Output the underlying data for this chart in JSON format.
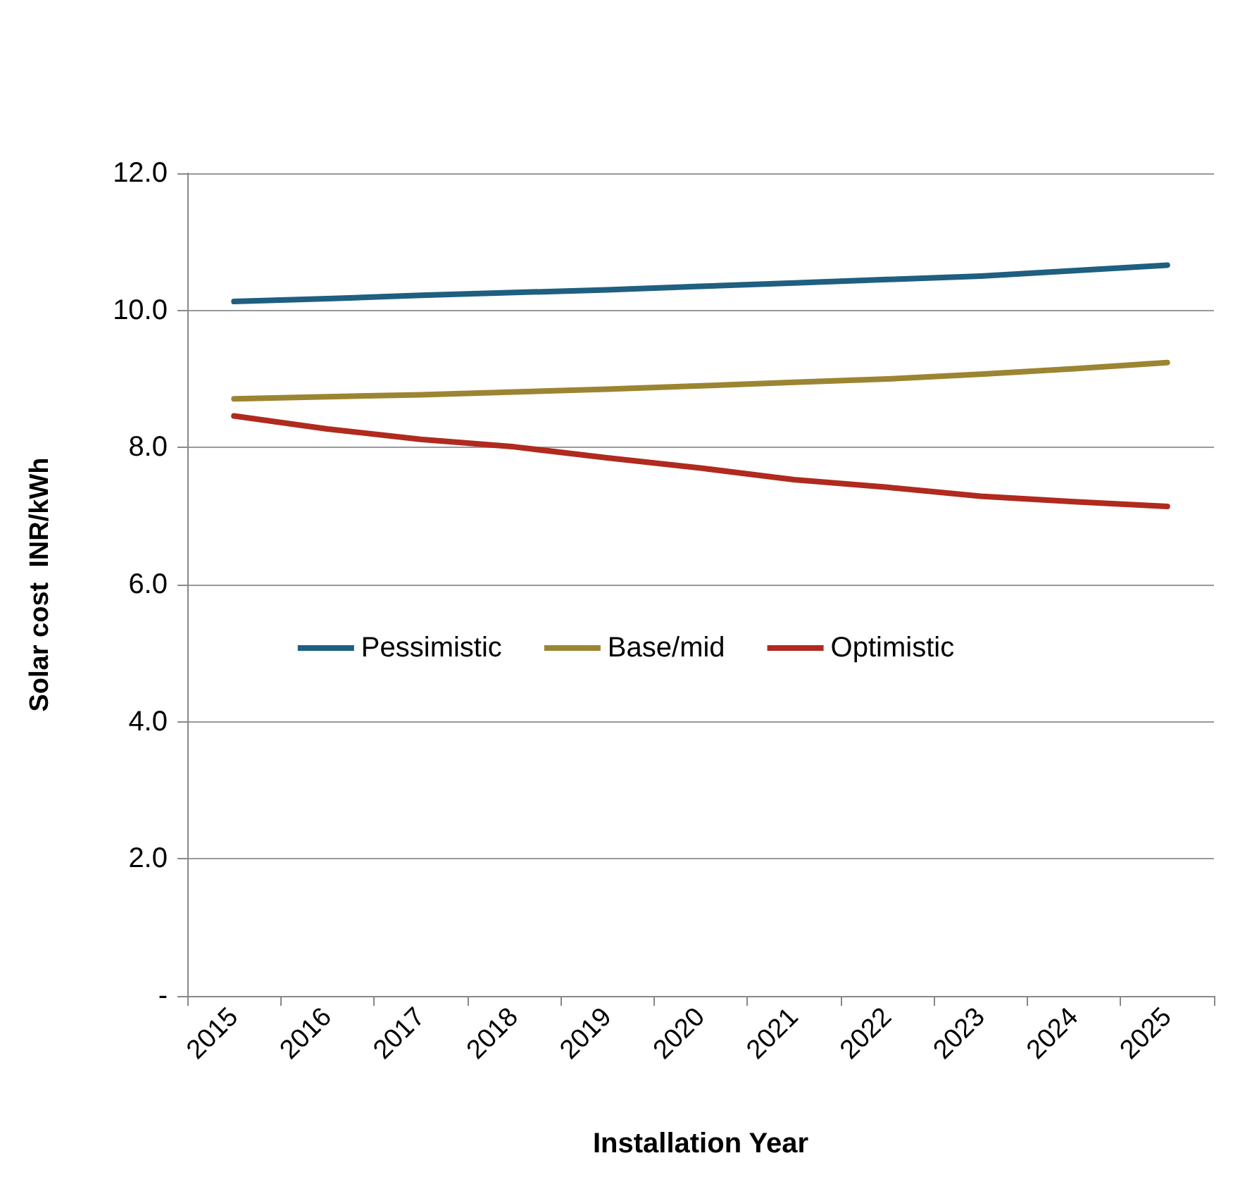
{
  "chart_data": {
    "type": "line",
    "xlabel": "Installation Year",
    "ylabel": "Solar cost  INR/kWh",
    "categories": [
      "2015",
      "2016",
      "2017",
      "2018",
      "2019",
      "2020",
      "2021",
      "2022",
      "2023",
      "2024",
      "2025"
    ],
    "series": [
      {
        "name": "Pessimistic",
        "color": "#1f5f80",
        "values": [
          10.13,
          10.17,
          10.22,
          10.26,
          10.3,
          10.35,
          10.4,
          10.45,
          10.5,
          10.58,
          10.66
        ]
      },
      {
        "name": "Base/mid",
        "color": "#9c8532",
        "values": [
          8.71,
          8.74,
          8.77,
          8.81,
          8.85,
          8.9,
          8.95,
          9.0,
          9.07,
          9.15,
          9.24
        ]
      },
      {
        "name": "Optimistic",
        "color": "#b02a1e",
        "values": [
          8.46,
          8.27,
          8.12,
          8.01,
          7.85,
          7.7,
          7.53,
          7.42,
          7.29,
          7.21,
          7.14
        ]
      }
    ],
    "ylim": [
      0,
      12
    ],
    "yticks": [
      {
        "value": 0,
        "label": "-"
      },
      {
        "value": 2,
        "label": "2.0"
      },
      {
        "value": 4,
        "label": "4.0"
      },
      {
        "value": 6,
        "label": "6.0"
      },
      {
        "value": 8,
        "label": "8.0"
      },
      {
        "value": 10,
        "label": "10.0"
      },
      {
        "value": 12,
        "label": "12.0"
      }
    ],
    "grid": "y",
    "legend": "center",
    "marker": "none",
    "line_style": "solid"
  }
}
